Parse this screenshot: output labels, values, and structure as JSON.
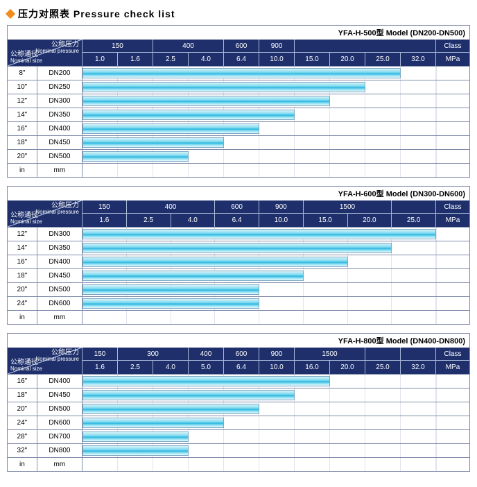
{
  "title": "压力对照表 Pressure check list",
  "diamond_color": "#f28c1a",
  "colors": {
    "navy_bg": "#1e2f6b",
    "border": "#808caa",
    "bar_border": "#7aa7c4"
  },
  "size_col_width": 108,
  "header_labels": {
    "pressure_cn": "公称压力",
    "pressure_en": "Nominal pressure",
    "size_cn": "公称通径",
    "size_en": "Nominal size",
    "class": "Class",
    "mpa": "MPa",
    "in": "in",
    "mm": "mm"
  },
  "charts": [
    {
      "model": "YFA-H-500型  Model (DN200-DN500)",
      "class_ticks": [
        "150",
        "400",
        "600",
        "900"
      ],
      "class_spans": [
        2,
        2,
        1,
        1,
        4
      ],
      "mpa_ticks": [
        "1.0",
        "1.6",
        "2.5",
        "4.0",
        "6.4",
        "10.0",
        "15.0",
        "20.0",
        "25.0",
        "32.0"
      ],
      "rows": [
        {
          "in": "8\"",
          "mm": "DN200",
          "bar_pct": 90
        },
        {
          "in": "10\"",
          "mm": "DN250",
          "bar_pct": 80
        },
        {
          "in": "12\"",
          "mm": "DN300",
          "bar_pct": 70
        },
        {
          "in": "14\"",
          "mm": "DN350",
          "bar_pct": 60
        },
        {
          "in": "16\"",
          "mm": "DN400",
          "bar_pct": 50
        },
        {
          "in": "18\"",
          "mm": "DN450",
          "bar_pct": 40
        },
        {
          "in": "20\"",
          "mm": "DN500",
          "bar_pct": 30
        }
      ]
    },
    {
      "model": "YFA-H-600型  Model (DN300-DN600)",
      "class_ticks": [
        "150",
        "400",
        "600",
        "900",
        "1500"
      ],
      "class_spans": [
        1,
        2,
        1,
        1,
        2,
        1
      ],
      "mpa_ticks": [
        "1.6",
        "2.5",
        "4.0",
        "6.4",
        "10.0",
        "15.0",
        "20.0",
        "25.0"
      ],
      "rows": [
        {
          "in": "12\"",
          "mm": "DN300",
          "bar_pct": 100
        },
        {
          "in": "14\"",
          "mm": "DN350",
          "bar_pct": 87.5
        },
        {
          "in": "16\"",
          "mm": "DN400",
          "bar_pct": 75
        },
        {
          "in": "18\"",
          "mm": "DN450",
          "bar_pct": 62.5
        },
        {
          "in": "20\"",
          "mm": "DN500",
          "bar_pct": 50
        },
        {
          "in": "24\"",
          "mm": "DN600",
          "bar_pct": 50
        }
      ]
    },
    {
      "model": "YFA-H-800型  Model (DN400-DN800)",
      "class_ticks": [
        "150",
        "300",
        "400",
        "600",
        "900",
        "1500"
      ],
      "class_spans": [
        1,
        2,
        1,
        1,
        1,
        2,
        1,
        1
      ],
      "mpa_ticks": [
        "1.6",
        "2.5",
        "4.0",
        "5.0",
        "6.4",
        "10.0",
        "16.0",
        "20.0",
        "25.0",
        "32.0"
      ],
      "rows": [
        {
          "in": "16\"",
          "mm": "DN400",
          "bar_pct": 70
        },
        {
          "in": "18\"",
          "mm": "DN450",
          "bar_pct": 60
        },
        {
          "in": "20\"",
          "mm": "DN500",
          "bar_pct": 50
        },
        {
          "in": "24\"",
          "mm": "DN600",
          "bar_pct": 40
        },
        {
          "in": "28\"",
          "mm": "DN700",
          "bar_pct": 30
        },
        {
          "in": "32\"",
          "mm": "DN800",
          "bar_pct": 30
        }
      ]
    }
  ]
}
